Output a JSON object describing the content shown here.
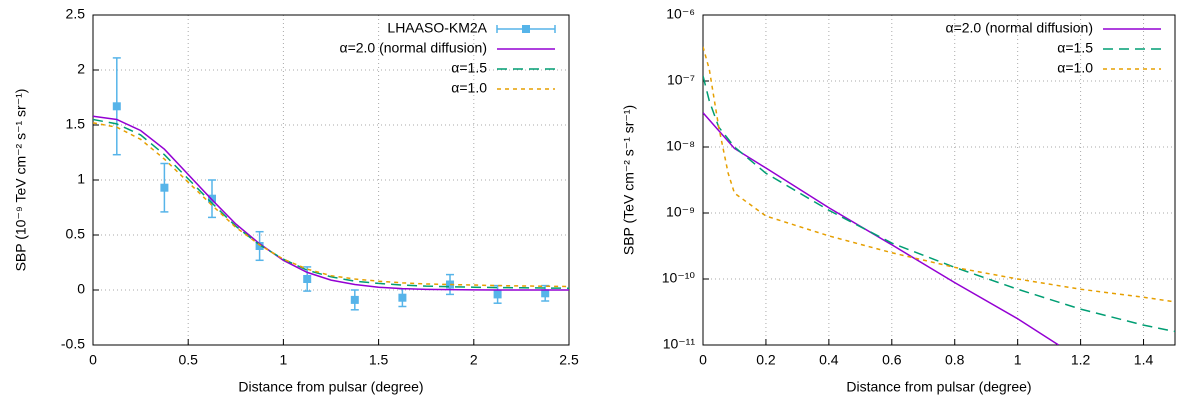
{
  "chart_data": [
    {
      "type": "line",
      "xlabel": "Distance from pulsar (degree)",
      "ylabel": "SBP (10⁻⁹ TeV cm⁻² s⁻¹ sr⁻¹)",
      "xlim": [
        0,
        2.5
      ],
      "ylim": [
        -0.5,
        2.5
      ],
      "xticks": [
        0,
        0.5,
        1,
        1.5,
        2,
        2.5
      ],
      "yticks": [
        -0.5,
        0,
        0.5,
        1,
        1.5,
        2,
        2.5
      ],
      "grid": true,
      "legend": "upper right",
      "series": [
        {
          "name": "LHAASO-KM2A",
          "color": "#56b4e9",
          "kind": "errorbar",
          "x": [
            0.125,
            0.375,
            0.625,
            0.875,
            1.125,
            1.375,
            1.625,
            1.875,
            2.125,
            2.375
          ],
          "values": [
            1.67,
            0.93,
            0.83,
            0.4,
            0.1,
            -0.09,
            -0.07,
            0.05,
            -0.04,
            -0.03
          ],
          "errors": [
            0.44,
            0.22,
            0.17,
            0.13,
            0.11,
            0.09,
            0.08,
            0.09,
            0.08,
            0.07
          ]
        },
        {
          "name": "α=2.0 (normal diffusion)",
          "color": "#9400d3",
          "dash": "solid",
          "x": [
            0,
            0.125,
            0.25,
            0.375,
            0.5,
            0.625,
            0.75,
            0.875,
            1,
            1.125,
            1.25,
            1.375,
            1.5,
            1.625,
            1.75,
            1.875,
            2,
            2.125,
            2.25,
            2.375,
            2.5
          ],
          "values": [
            1.58,
            1.55,
            1.45,
            1.28,
            1.05,
            0.82,
            0.6,
            0.42,
            0.27,
            0.16,
            0.09,
            0.05,
            0.025,
            0.012,
            0.006,
            0.003,
            0.001,
            0,
            0,
            0,
            0
          ]
        },
        {
          "name": "α=1.5",
          "color": "#009e73",
          "dash": "dashed",
          "x": [
            0,
            0.125,
            0.25,
            0.375,
            0.5,
            0.625,
            0.75,
            0.875,
            1,
            1.125,
            1.25,
            1.375,
            1.5,
            1.625,
            1.75,
            1.875,
            2,
            2.125,
            2.25,
            2.375,
            2.5
          ],
          "values": [
            1.55,
            1.51,
            1.41,
            1.23,
            1.01,
            0.79,
            0.58,
            0.41,
            0.28,
            0.18,
            0.12,
            0.08,
            0.06,
            0.045,
            0.035,
            0.03,
            0.025,
            0.022,
            0.02,
            0.018,
            0.016
          ]
        },
        {
          "name": "α=1.0",
          "color": "#e69f00",
          "dash": "dotted",
          "x": [
            0,
            0.125,
            0.25,
            0.375,
            0.5,
            0.625,
            0.75,
            0.875,
            1,
            1.125,
            1.25,
            1.375,
            1.5,
            1.625,
            1.75,
            1.875,
            2,
            2.125,
            2.25,
            2.375,
            2.5
          ],
          "values": [
            1.52,
            1.48,
            1.37,
            1.19,
            0.98,
            0.77,
            0.57,
            0.41,
            0.28,
            0.19,
            0.13,
            0.1,
            0.08,
            0.065,
            0.055,
            0.05,
            0.045,
            0.04,
            0.037,
            0.034,
            0.032
          ]
        }
      ]
    },
    {
      "type": "line",
      "xlabel": "Distance from pulsar (degree)",
      "ylabel": "SBP (TeV cm⁻² s⁻¹ sr⁻¹)",
      "xlim": [
        0,
        1.5
      ],
      "ylim": [
        1e-11,
        1e-06
      ],
      "ylog": true,
      "xticks": [
        0,
        0.2,
        0.4,
        0.6,
        0.8,
        1,
        1.2,
        1.4
      ],
      "yticks": [
        {
          "value": 1e-11,
          "label": "10⁻¹¹"
        },
        {
          "value": 1e-10,
          "label": "10⁻¹⁰"
        },
        {
          "value": 1e-09,
          "label": "10⁻⁹"
        },
        {
          "value": 1e-08,
          "label": "10⁻⁸"
        },
        {
          "value": 1e-07,
          "label": "10⁻⁷"
        },
        {
          "value": 1e-06,
          "label": "10⁻⁶"
        }
      ],
      "grid": true,
      "legend": "upper right",
      "series": [
        {
          "name": "α=2.0 (normal diffusion)",
          "color": "#9400d3",
          "dash": "solid",
          "x": [
            0,
            0.1,
            0.2,
            0.4,
            0.6,
            0.8,
            1.0,
            1.13
          ],
          "values": [
            3.3e-08,
            9.5e-09,
            4.8e-09,
            1.2e-09,
            3.3e-10,
            8.8e-11,
            2.5e-11,
            1e-11
          ]
        },
        {
          "name": "α=1.5",
          "color": "#009e73",
          "dash": "dashed",
          "x": [
            0,
            0.02,
            0.05,
            0.1,
            0.2,
            0.4,
            0.6,
            0.8,
            1.0,
            1.2,
            1.4,
            1.5
          ],
          "values": [
            1.2e-07,
            5e-08,
            2e-08,
            1e-08,
            4e-09,
            1.1e-09,
            3.5e-10,
            1.5e-10,
            7e-11,
            3.5e-11,
            2e-11,
            1.6e-11
          ]
        },
        {
          "name": "α=1.0",
          "color": "#e69f00",
          "dash": "dotted",
          "x": [
            0,
            0.02,
            0.05,
            0.08,
            0.1,
            0.2,
            0.4,
            0.6,
            0.8,
            1.0,
            1.2,
            1.4,
            1.5
          ],
          "values": [
            3.3e-07,
            1.5e-07,
            2e-08,
            4e-09,
            2e-09,
            9e-10,
            4.5e-10,
            2.5e-10,
            1.5e-10,
            1e-10,
            7e-11,
            5.3e-11,
            4.5e-11
          ]
        }
      ]
    }
  ]
}
